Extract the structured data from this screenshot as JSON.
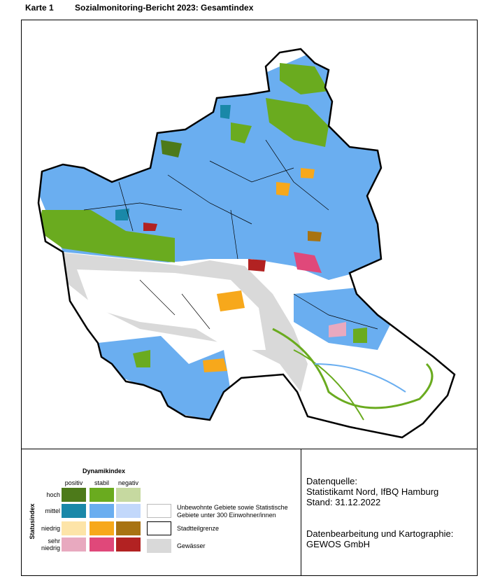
{
  "header": {
    "label": "Karte 1",
    "title": "Sozialmonitoring-Bericht 2023: Gesamtindex"
  },
  "legend": {
    "dynamik_title": "Dynamikindex",
    "columns": [
      "positiv",
      "stabil",
      "negativ"
    ],
    "status_title": "Statusindex",
    "rows": [
      {
        "label": "hoch",
        "colors": [
          "#4d7a1a",
          "#6aab1f",
          "#c6d9a0"
        ]
      },
      {
        "label": "mittel",
        "colors": [
          "#1a88a8",
          "#6aaef0",
          "#c2d8fb"
        ]
      },
      {
        "label": "niedrig",
        "colors": [
          "#fde4a8",
          "#f7a81b",
          "#a87312"
        ]
      },
      {
        "label": "sehr niedrig",
        "colors": [
          "#e8a9bf",
          "#e0487a",
          "#b22222"
        ]
      }
    ],
    "other": [
      {
        "label": "Unbewohnte Gebiete sowie Statistische Gebiete unter 300 Einwohner/innen",
        "fill": "#ffffff",
        "border": "#bbbbbb"
      },
      {
        "label": "Stadtteilgrenze",
        "fill": "#ffffff",
        "border": "#000000"
      },
      {
        "label": "Gewässer",
        "fill": "#d9d9d9",
        "border": "#d9d9d9"
      }
    ]
  },
  "source": {
    "data": [
      "Datenquelle:",
      "Statistikamt Nord, IfBQ Hamburg",
      "Stand: 31.12.2022"
    ],
    "processing": [
      "Datenbearbeitung und Kartographie:",
      "GEWOS GmbH"
    ]
  }
}
